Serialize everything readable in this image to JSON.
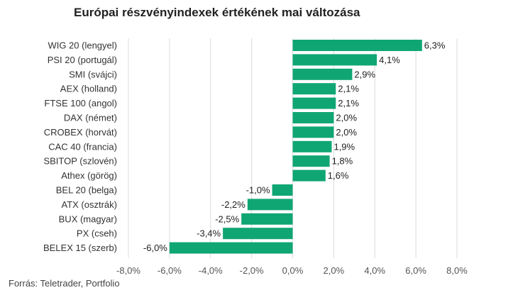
{
  "title": "Európai részvényindexek értékének mai változása",
  "source": "Forrás: Teletrader, Portfolio",
  "colors": {
    "bar": "#10a673",
    "grid": "#dcdcdc",
    "text": "#333333",
    "axis_text": "#555555"
  },
  "chart_data": {
    "type": "bar",
    "orientation": "horizontal",
    "title": "Európai részvényindexek értékének mai változása",
    "categories": [
      "WIG 20 (lengyel)",
      "PSI 20 (portugál)",
      "SMI (svájci)",
      "AEX (holland)",
      "FTSE 100 (angol)",
      "DAX (német)",
      "CROBEX (horvát)",
      "CAC 40 (francia)",
      "SBITOP (szlovén)",
      "Athex (görög)",
      "BEL 20 (belga)",
      "ATX (osztrák)",
      "BUX (magyar)",
      "PX (cseh)",
      "BELEX 15 (szerb)"
    ],
    "values": [
      6.3,
      4.1,
      2.9,
      2.1,
      2.1,
      2.0,
      2.0,
      1.9,
      1.8,
      1.6,
      -1.0,
      -2.2,
      -2.5,
      -3.4,
      -6.0
    ],
    "value_labels": [
      "6,3%",
      "4,1%",
      "2,9%",
      "2,1%",
      "2,1%",
      "2,0%",
      "2,0%",
      "1,9%",
      "1,8%",
      "1,6%",
      "-1,0%",
      "-2,2%",
      "-2,5%",
      "-3,4%",
      "-6,0%"
    ],
    "xlim": [
      -8,
      8
    ],
    "xticks": [
      -8,
      -6,
      -4,
      -2,
      0,
      2,
      4,
      6,
      8
    ],
    "xtick_labels": [
      "-8,0%",
      "-6,0%",
      "-4,0%",
      "-2,0%",
      "0,0%",
      "2,0%",
      "4,0%",
      "6,0%",
      "8,0%"
    ],
    "grid": true,
    "legend": "none"
  }
}
